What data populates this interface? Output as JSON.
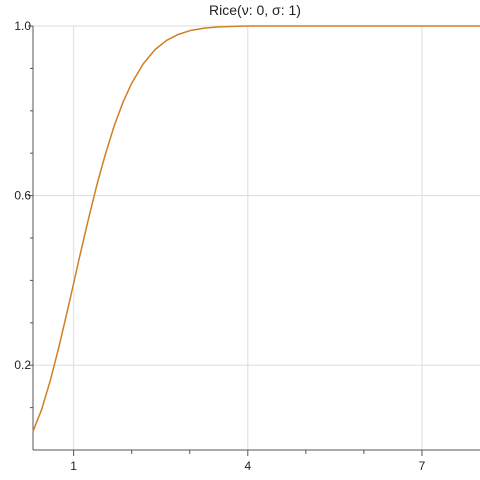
{
  "chart_data": {
    "type": "line",
    "title": "Rice(ν: 0, σ: 1)",
    "xlabel": "",
    "ylabel": "",
    "xlim": [
      0.3,
      8.0
    ],
    "ylim": [
      0.0,
      1.0
    ],
    "x_ticks": [
      1,
      4,
      7
    ],
    "x_tick_labels": [
      "1",
      "4",
      "7"
    ],
    "x_minor_ticks": [
      2,
      3,
      5,
      6
    ],
    "y_ticks": [
      0.2,
      0.6,
      1.0
    ],
    "y_tick_labels": [
      "0.2",
      "0.6",
      "1.0"
    ],
    "y_minor_ticks": [
      0.1,
      0.3,
      0.4,
      0.5,
      0.7,
      0.8,
      0.9
    ],
    "grid": true,
    "series": [
      {
        "color": "#d07f24",
        "x": [
          0.3,
          0.45,
          0.6,
          0.75,
          0.9,
          1.0,
          1.1,
          1.25,
          1.4,
          1.55,
          1.7,
          1.85,
          2.0,
          2.2,
          2.4,
          2.6,
          2.8,
          3.0,
          3.25,
          3.5,
          3.75,
          4.0,
          5.0,
          6.0,
          7.0,
          8.0
        ],
        "y": [
          0.044,
          0.096,
          0.165,
          0.245,
          0.333,
          0.393,
          0.454,
          0.542,
          0.625,
          0.699,
          0.765,
          0.82,
          0.865,
          0.911,
          0.944,
          0.966,
          0.98,
          0.989,
          0.995,
          0.998,
          0.999,
          1.0,
          1.0,
          1.0,
          1.0,
          1.0
        ]
      }
    ]
  }
}
